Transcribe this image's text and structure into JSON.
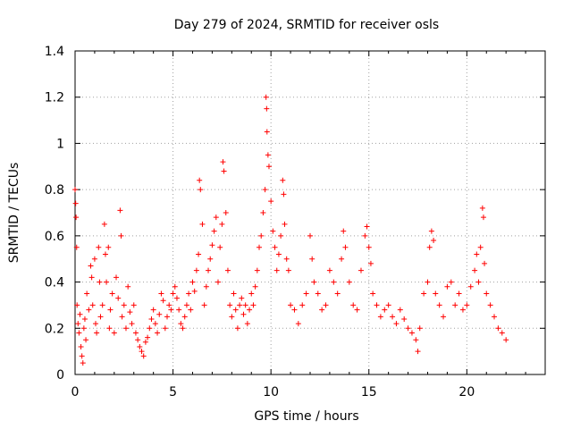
{
  "chart_data": {
    "type": "scatter",
    "title": "Day 279 of 2024, SRMTID for receiver osls",
    "xlabel": "GPS time / hours",
    "ylabel": "SRMTID / TECUs",
    "xlim": [
      0,
      24
    ],
    "ylim": [
      0,
      1.4
    ],
    "x_ticks": [
      0,
      5,
      10,
      15,
      20
    ],
    "x_tick_labels": [
      "0",
      "5",
      "10",
      "15",
      "20"
    ],
    "y_ticks": [
      0,
      0.2,
      0.4,
      0.6,
      0.8,
      1,
      1.2,
      1.4
    ],
    "y_tick_labels": [
      "0",
      "0.2",
      "0.4",
      "0.6",
      "0.8",
      "1",
      "1.2",
      "1.4"
    ],
    "grid": true,
    "marker": "+",
    "marker_color": "#ff0000",
    "series": [
      {
        "name": "SRMTID",
        "points": [
          [
            0.0,
            0.8
          ],
          [
            0.03,
            0.74
          ],
          [
            0.05,
            0.68
          ],
          [
            0.08,
            0.55
          ],
          [
            0.1,
            0.3
          ],
          [
            0.15,
            0.22
          ],
          [
            0.2,
            0.18
          ],
          [
            0.25,
            0.26
          ],
          [
            0.3,
            0.12
          ],
          [
            0.35,
            0.08
          ],
          [
            0.4,
            0.05
          ],
          [
            0.45,
            0.2
          ],
          [
            0.5,
            0.24
          ],
          [
            0.55,
            0.15
          ],
          [
            0.6,
            0.35
          ],
          [
            0.7,
            0.28
          ],
          [
            0.8,
            0.47
          ],
          [
            0.85,
            0.42
          ],
          [
            0.9,
            0.3
          ],
          [
            1.0,
            0.5
          ],
          [
            1.05,
            0.22
          ],
          [
            1.1,
            0.18
          ],
          [
            1.2,
            0.55
          ],
          [
            1.25,
            0.4
          ],
          [
            1.3,
            0.25
          ],
          [
            1.4,
            0.3
          ],
          [
            1.5,
            0.65
          ],
          [
            1.55,
            0.52
          ],
          [
            1.6,
            0.4
          ],
          [
            1.7,
            0.55
          ],
          [
            1.75,
            0.2
          ],
          [
            1.8,
            0.28
          ],
          [
            1.9,
            0.35
          ],
          [
            2.0,
            0.18
          ],
          [
            2.1,
            0.42
          ],
          [
            2.2,
            0.33
          ],
          [
            2.3,
            0.71
          ],
          [
            2.35,
            0.6
          ],
          [
            2.4,
            0.25
          ],
          [
            2.5,
            0.3
          ],
          [
            2.6,
            0.2
          ],
          [
            2.7,
            0.38
          ],
          [
            2.8,
            0.27
          ],
          [
            2.9,
            0.22
          ],
          [
            3.0,
            0.3
          ],
          [
            3.1,
            0.18
          ],
          [
            3.2,
            0.15
          ],
          [
            3.3,
            0.12
          ],
          [
            3.4,
            0.1
          ],
          [
            3.5,
            0.08
          ],
          [
            3.6,
            0.14
          ],
          [
            3.7,
            0.16
          ],
          [
            3.8,
            0.2
          ],
          [
            3.9,
            0.24
          ],
          [
            4.0,
            0.28
          ],
          [
            4.1,
            0.22
          ],
          [
            4.2,
            0.18
          ],
          [
            4.3,
            0.26
          ],
          [
            4.4,
            0.35
          ],
          [
            4.5,
            0.32
          ],
          [
            4.6,
            0.2
          ],
          [
            4.7,
            0.25
          ],
          [
            4.8,
            0.3
          ],
          [
            4.9,
            0.28
          ],
          [
            5.0,
            0.35
          ],
          [
            5.1,
            0.38
          ],
          [
            5.2,
            0.33
          ],
          [
            5.3,
            0.28
          ],
          [
            5.4,
            0.22
          ],
          [
            5.5,
            0.2
          ],
          [
            5.6,
            0.25
          ],
          [
            5.7,
            0.3
          ],
          [
            5.8,
            0.35
          ],
          [
            5.9,
            0.28
          ],
          [
            6.0,
            0.4
          ],
          [
            6.1,
            0.36
          ],
          [
            6.2,
            0.45
          ],
          [
            6.3,
            0.52
          ],
          [
            6.35,
            0.84
          ],
          [
            6.4,
            0.8
          ],
          [
            6.5,
            0.65
          ],
          [
            6.6,
            0.3
          ],
          [
            6.7,
            0.38
          ],
          [
            6.8,
            0.45
          ],
          [
            6.9,
            0.5
          ],
          [
            7.0,
            0.56
          ],
          [
            7.1,
            0.62
          ],
          [
            7.2,
            0.68
          ],
          [
            7.3,
            0.4
          ],
          [
            7.4,
            0.55
          ],
          [
            7.5,
            0.65
          ],
          [
            7.55,
            0.92
          ],
          [
            7.6,
            0.88
          ],
          [
            7.7,
            0.7
          ],
          [
            7.8,
            0.45
          ],
          [
            7.9,
            0.3
          ],
          [
            8.0,
            0.25
          ],
          [
            8.1,
            0.35
          ],
          [
            8.2,
            0.28
          ],
          [
            8.3,
            0.2
          ],
          [
            8.4,
            0.3
          ],
          [
            8.5,
            0.33
          ],
          [
            8.6,
            0.26
          ],
          [
            8.7,
            0.3
          ],
          [
            8.8,
            0.22
          ],
          [
            8.9,
            0.28
          ],
          [
            9.0,
            0.35
          ],
          [
            9.1,
            0.3
          ],
          [
            9.2,
            0.38
          ],
          [
            9.3,
            0.45
          ],
          [
            9.4,
            0.55
          ],
          [
            9.5,
            0.6
          ],
          [
            9.6,
            0.7
          ],
          [
            9.7,
            0.8
          ],
          [
            9.75,
            1.2
          ],
          [
            9.78,
            1.15
          ],
          [
            9.8,
            1.05
          ],
          [
            9.85,
            0.95
          ],
          [
            9.9,
            0.9
          ],
          [
            10.0,
            0.75
          ],
          [
            10.1,
            0.62
          ],
          [
            10.2,
            0.55
          ],
          [
            10.3,
            0.45
          ],
          [
            10.4,
            0.52
          ],
          [
            10.5,
            0.6
          ],
          [
            10.6,
            0.84
          ],
          [
            10.65,
            0.78
          ],
          [
            10.7,
            0.65
          ],
          [
            10.8,
            0.5
          ],
          [
            10.9,
            0.45
          ],
          [
            11.0,
            0.3
          ],
          [
            11.2,
            0.28
          ],
          [
            11.4,
            0.22
          ],
          [
            11.6,
            0.3
          ],
          [
            11.8,
            0.35
          ],
          [
            12.0,
            0.6
          ],
          [
            12.1,
            0.5
          ],
          [
            12.2,
            0.4
          ],
          [
            12.4,
            0.35
          ],
          [
            12.6,
            0.28
          ],
          [
            12.8,
            0.3
          ],
          [
            13.0,
            0.45
          ],
          [
            13.2,
            0.4
          ],
          [
            13.4,
            0.35
          ],
          [
            13.6,
            0.5
          ],
          [
            13.7,
            0.62
          ],
          [
            13.8,
            0.55
          ],
          [
            14.0,
            0.4
          ],
          [
            14.2,
            0.3
          ],
          [
            14.4,
            0.28
          ],
          [
            14.6,
            0.45
          ],
          [
            14.8,
            0.6
          ],
          [
            14.9,
            0.64
          ],
          [
            15.0,
            0.55
          ],
          [
            15.1,
            0.48
          ],
          [
            15.2,
            0.35
          ],
          [
            15.4,
            0.3
          ],
          [
            15.6,
            0.25
          ],
          [
            15.8,
            0.28
          ],
          [
            16.0,
            0.3
          ],
          [
            16.2,
            0.25
          ],
          [
            16.4,
            0.22
          ],
          [
            16.6,
            0.28
          ],
          [
            16.8,
            0.24
          ],
          [
            17.0,
            0.2
          ],
          [
            17.2,
            0.18
          ],
          [
            17.4,
            0.15
          ],
          [
            17.5,
            0.1
          ],
          [
            17.6,
            0.2
          ],
          [
            17.8,
            0.35
          ],
          [
            18.0,
            0.4
          ],
          [
            18.1,
            0.55
          ],
          [
            18.2,
            0.62
          ],
          [
            18.3,
            0.58
          ],
          [
            18.4,
            0.35
          ],
          [
            18.6,
            0.3
          ],
          [
            18.8,
            0.25
          ],
          [
            19.0,
            0.38
          ],
          [
            19.2,
            0.4
          ],
          [
            19.4,
            0.3
          ],
          [
            19.6,
            0.35
          ],
          [
            19.8,
            0.28
          ],
          [
            20.0,
            0.3
          ],
          [
            20.2,
            0.38
          ],
          [
            20.4,
            0.45
          ],
          [
            20.5,
            0.52
          ],
          [
            20.6,
            0.4
          ],
          [
            20.7,
            0.55
          ],
          [
            20.8,
            0.72
          ],
          [
            20.85,
            0.68
          ],
          [
            20.9,
            0.48
          ],
          [
            21.0,
            0.35
          ],
          [
            21.2,
            0.3
          ],
          [
            21.4,
            0.25
          ],
          [
            21.6,
            0.2
          ],
          [
            21.8,
            0.18
          ],
          [
            22.0,
            0.15
          ]
        ]
      }
    ]
  }
}
